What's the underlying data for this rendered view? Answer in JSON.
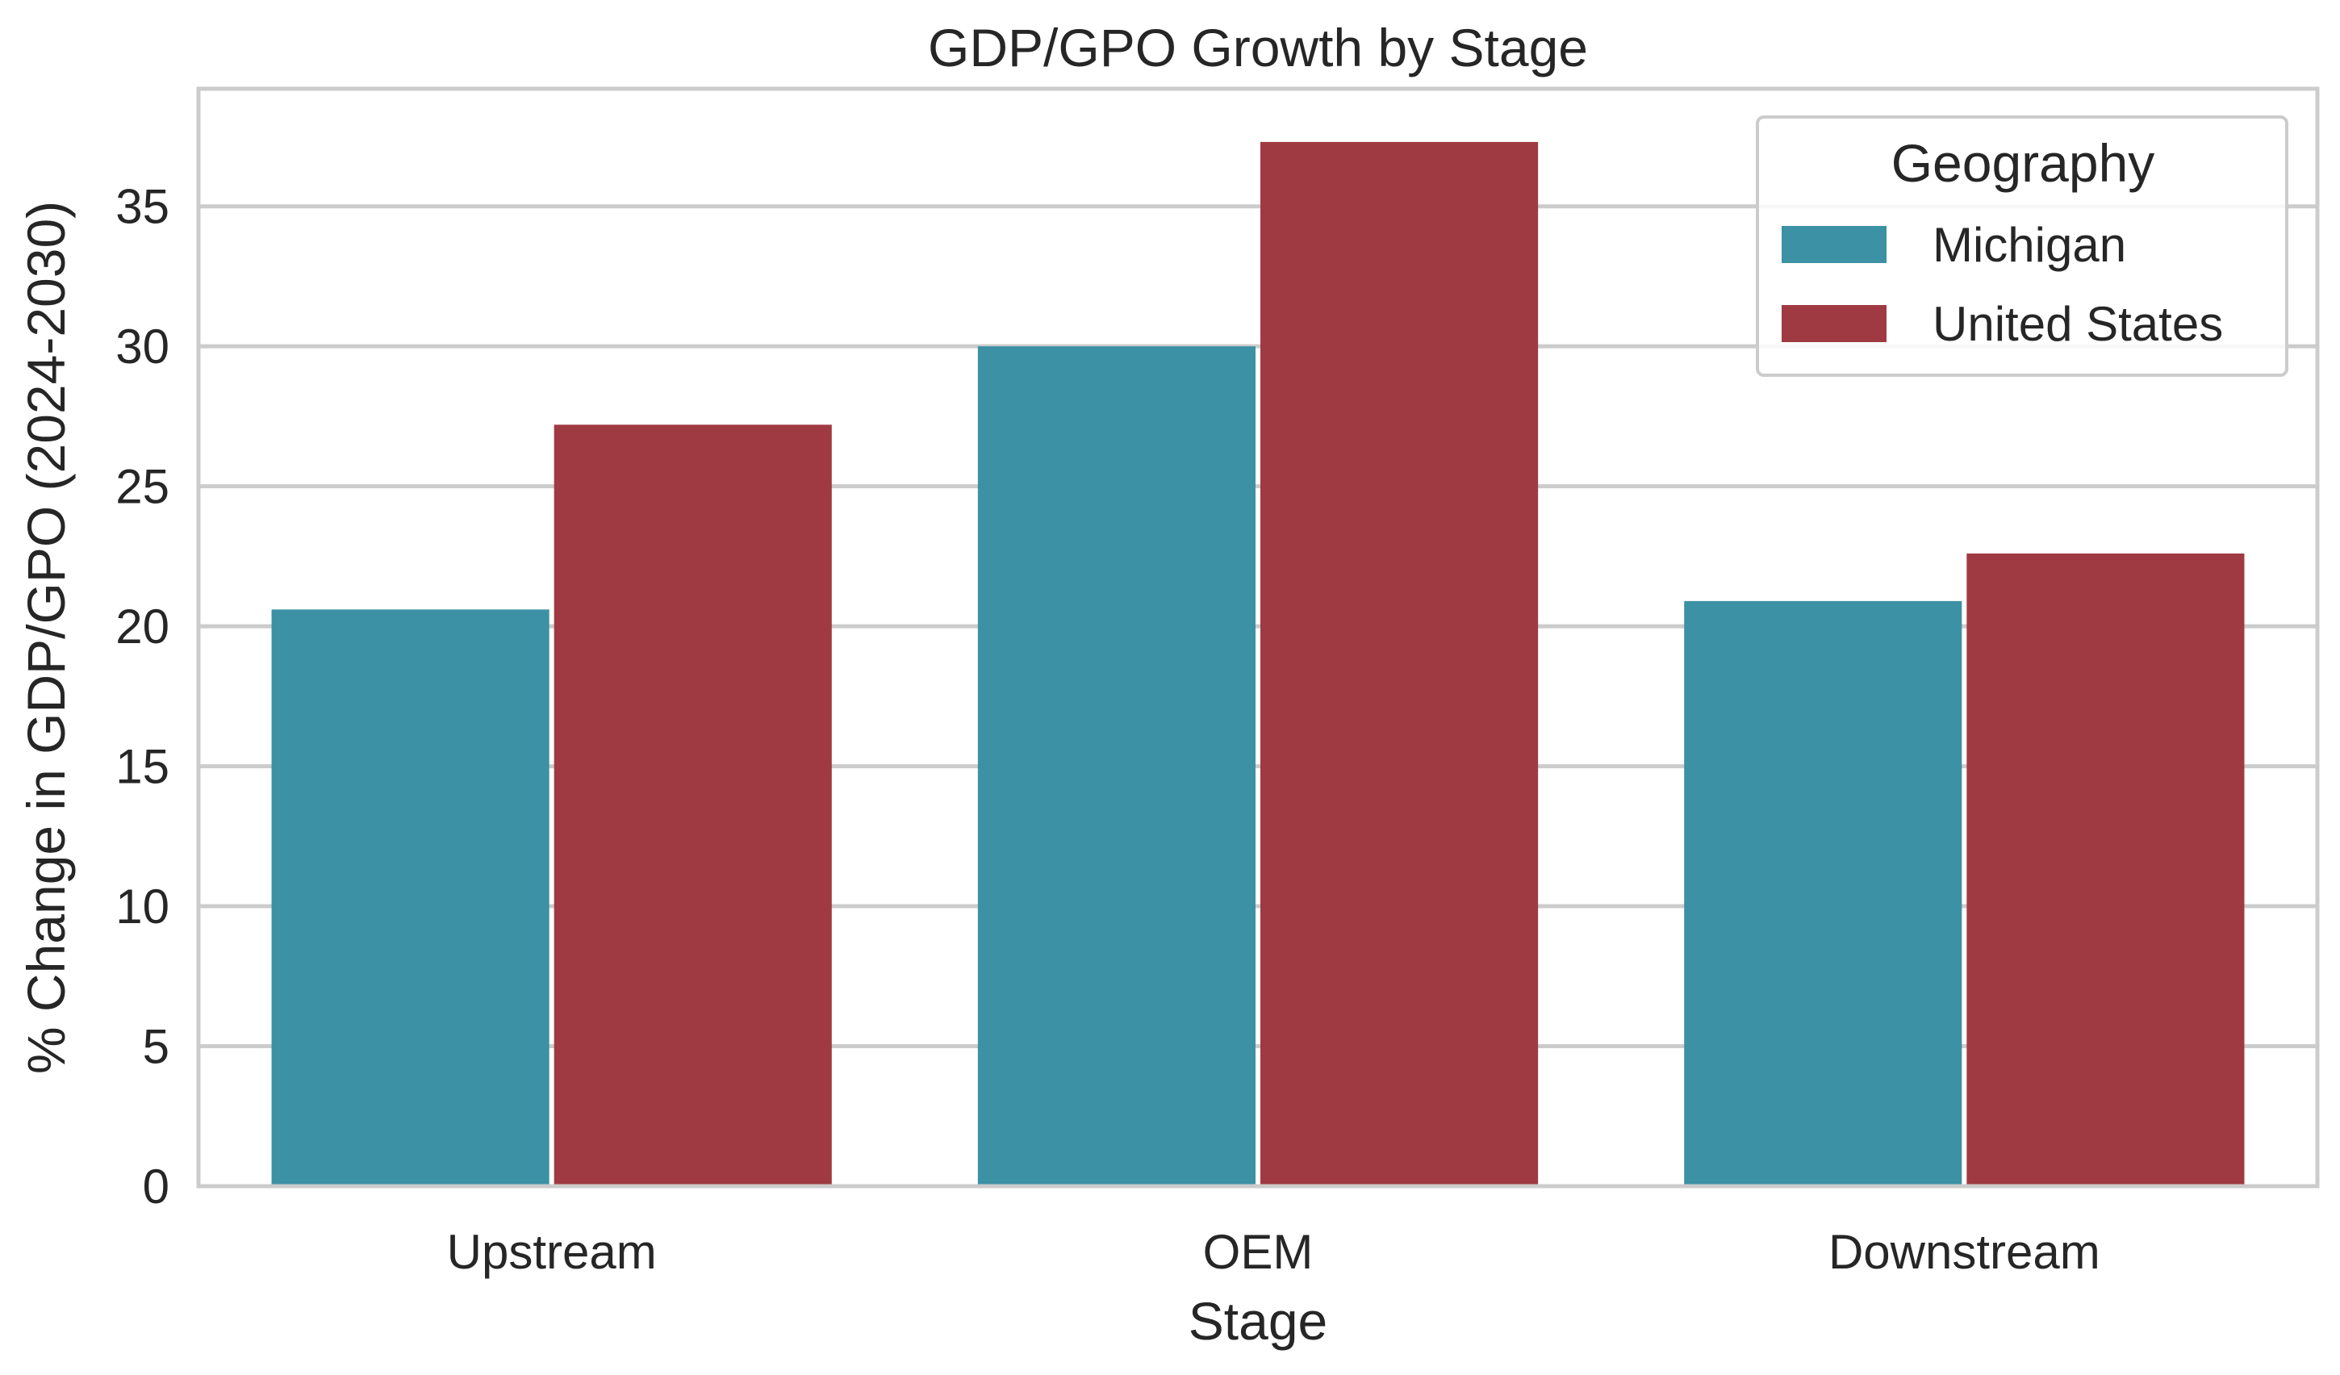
{
  "chart_data": {
    "type": "bar",
    "title": "GDP/GPO Growth by Stage",
    "xlabel": "Stage",
    "ylabel": "% Change in GDP/GPO (2024-2030)",
    "categories": [
      "Upstream",
      "OEM",
      "Downstream"
    ],
    "series": [
      {
        "name": "Michigan",
        "color": "#3c91a4",
        "values": [
          20.6,
          30.0,
          20.9
        ]
      },
      {
        "name": "United States",
        "color": "#a03a42",
        "values": [
          27.2,
          37.3,
          22.6
        ]
      }
    ],
    "ylim": [
      0,
      39.2
    ],
    "yticks": [
      0,
      5,
      10,
      15,
      20,
      25,
      30,
      35
    ],
    "grid": true,
    "legend": {
      "title": "Geography",
      "placement": "top-right"
    }
  }
}
